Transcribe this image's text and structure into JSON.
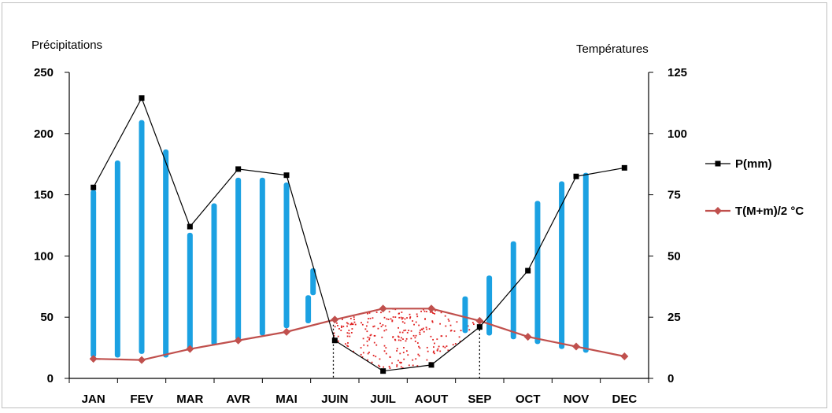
{
  "chart_data": {
    "type": "line",
    "left_axis_title": "Précipitations",
    "right_axis_title": "Températures",
    "categories": [
      "JAN",
      "FEV",
      "MAR",
      "AVR",
      "MAI",
      "JUIN",
      "JUIL",
      "AOUT",
      "SEP",
      "OCT",
      "NOV",
      "DEC"
    ],
    "y_left": {
      "range": [
        0,
        250
      ],
      "ticks": [
        "0",
        "50",
        "100",
        "150",
        "200",
        "250"
      ]
    },
    "y_right": {
      "range": [
        0,
        125
      ],
      "ticks": [
        "0",
        "25",
        "50",
        "75",
        "100",
        "125"
      ]
    },
    "series": [
      {
        "name": "P(mm)",
        "axis": "left",
        "color": "#000000",
        "marker": "square",
        "values": [
          156,
          229,
          124,
          171,
          166,
          31,
          6,
          11,
          42,
          88,
          165,
          172
        ]
      },
      {
        "name": "T(M+m)/2 °C",
        "axis": "right",
        "color": "#c0504d",
        "marker": "diamond",
        "values": [
          8,
          7.5,
          12,
          15.5,
          19,
          24,
          28.5,
          28.5,
          23.5,
          17,
          13,
          9
        ]
      }
    ],
    "rain_bars": {
      "color": "#1ba1e2",
      "note_values_left_axis": true,
      "bars": [
        {
          "month": 0.0,
          "y0": 17,
          "y1": 154
        },
        {
          "month": 0.5,
          "y0": 17,
          "y1": 178
        },
        {
          "month": 1.0,
          "y0": 20,
          "y1": 211
        },
        {
          "month": 1.5,
          "y0": 17,
          "y1": 187
        },
        {
          "month": 2.0,
          "y0": 23,
          "y1": 119
        },
        {
          "month": 2.5,
          "y0": 27,
          "y1": 143
        },
        {
          "month": 3.0,
          "y0": 31,
          "y1": 164
        },
        {
          "month": 3.5,
          "y0": 35,
          "y1": 164
        },
        {
          "month": 4.0,
          "y0": 41,
          "y1": 160
        },
        {
          "month": 4.45,
          "y0": 45,
          "y1": 68
        },
        {
          "month": 4.55,
          "y0": 68,
          "y1": 90
        },
        {
          "month": 7.7,
          "y0": 37,
          "y1": 67
        },
        {
          "month": 8.2,
          "y0": 35,
          "y1": 84
        },
        {
          "month": 8.7,
          "y0": 32,
          "y1": 112
        },
        {
          "month": 9.2,
          "y0": 28,
          "y1": 145
        },
        {
          "month": 9.7,
          "y0": 24,
          "y1": 161
        },
        {
          "month": 10.2,
          "y0": 21,
          "y1": 168
        }
      ]
    },
    "dry_period": {
      "from_month": 4.97,
      "to_month": 8.0,
      "fill": "dotted",
      "color": "#e02020"
    },
    "legend_position": "right",
    "grid": false
  }
}
